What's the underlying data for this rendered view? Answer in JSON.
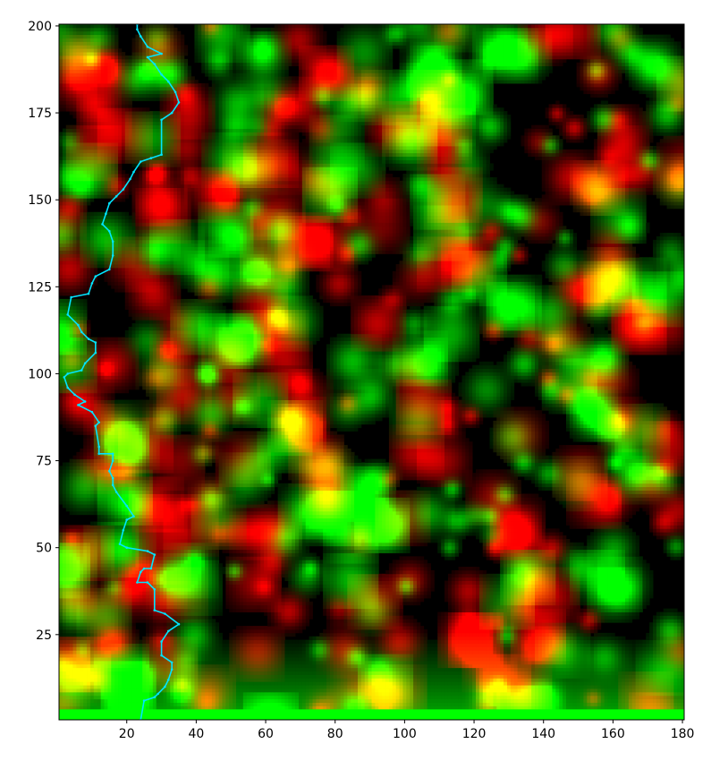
{
  "chart_data": {
    "type": "heatmap",
    "title": "",
    "xlabel": "",
    "ylabel": "",
    "xlim": [
      0.5,
      180.5
    ],
    "ylim": [
      0.5,
      200.5
    ],
    "x_ticks": [
      20,
      40,
      60,
      80,
      100,
      120,
      140,
      160,
      180
    ],
    "x_tick_labels": [
      "20",
      "40",
      "60",
      "80",
      "100",
      "120",
      "140",
      "160",
      "180"
    ],
    "y_ticks": [
      25,
      50,
      75,
      100,
      125,
      150,
      175,
      200
    ],
    "y_tick_labels": [
      "25",
      "50",
      "75",
      "100",
      "125",
      "150",
      "175",
      "200"
    ],
    "grid": false,
    "colors": {
      "background": "#000000",
      "red_channel": "#ff0000",
      "green_channel": "#00ff00",
      "line": "#00e5ff"
    },
    "heatmap_grid": {
      "columns": 180,
      "rows": 200
    },
    "bottom_band": {
      "y_range": [
        0.5,
        3.5
      ],
      "color": "#00ff00"
    },
    "series": [
      {
        "type": "line",
        "color": "#00e5ff",
        "points": [
          [
            24,
            0.5
          ],
          [
            25,
            6
          ],
          [
            28,
            7
          ],
          [
            29,
            8
          ],
          [
            31,
            10
          ],
          [
            32,
            12
          ],
          [
            33,
            15
          ],
          [
            33,
            17
          ],
          [
            30,
            19
          ],
          [
            30,
            23
          ],
          [
            32,
            26
          ],
          [
            35,
            28
          ],
          [
            31,
            31
          ],
          [
            28,
            32
          ],
          [
            28,
            38
          ],
          [
            26,
            40
          ],
          [
            23,
            40
          ],
          [
            24,
            43
          ],
          [
            25,
            44
          ],
          [
            27,
            44
          ],
          [
            28,
            48
          ],
          [
            26,
            49
          ],
          [
            20,
            50
          ],
          [
            18,
            51
          ],
          [
            19,
            55
          ],
          [
            20,
            58
          ],
          [
            22,
            59
          ],
          [
            20,
            62
          ],
          [
            17,
            66
          ],
          [
            16,
            68
          ],
          [
            16,
            70
          ],
          [
            15,
            72
          ],
          [
            16,
            75
          ],
          [
            16,
            77
          ],
          [
            12,
            77
          ],
          [
            12,
            79
          ],
          [
            11,
            85
          ],
          [
            12,
            86
          ],
          [
            10,
            89
          ],
          [
            6,
            91
          ],
          [
            8,
            92
          ],
          [
            5,
            94
          ],
          [
            3,
            96
          ],
          [
            2,
            99
          ],
          [
            3,
            100
          ],
          [
            7,
            101
          ],
          [
            8,
            103
          ],
          [
            11,
            106
          ],
          [
            11,
            109
          ],
          [
            9,
            110
          ],
          [
            7,
            112
          ],
          [
            6,
            114
          ],
          [
            3,
            117
          ],
          [
            4,
            122
          ],
          [
            9,
            123
          ],
          [
            10,
            126
          ],
          [
            11,
            128
          ],
          [
            15,
            130
          ],
          [
            16,
            134
          ],
          [
            16,
            138
          ],
          [
            15,
            141
          ],
          [
            13,
            143
          ],
          [
            14,
            146
          ],
          [
            15,
            149
          ],
          [
            17,
            151
          ],
          [
            19,
            153
          ],
          [
            21,
            156
          ],
          [
            22,
            158
          ],
          [
            24,
            161
          ],
          [
            27,
            162
          ],
          [
            30,
            163
          ],
          [
            30,
            173
          ],
          [
            33,
            175
          ],
          [
            35,
            178
          ],
          [
            34,
            181
          ],
          [
            32,
            184
          ],
          [
            30,
            186
          ],
          [
            28,
            189
          ],
          [
            26,
            191
          ],
          [
            30,
            192
          ],
          [
            26,
            194
          ],
          [
            24,
            197
          ],
          [
            23,
            199
          ],
          [
            23,
            200.5
          ]
        ]
      }
    ]
  }
}
